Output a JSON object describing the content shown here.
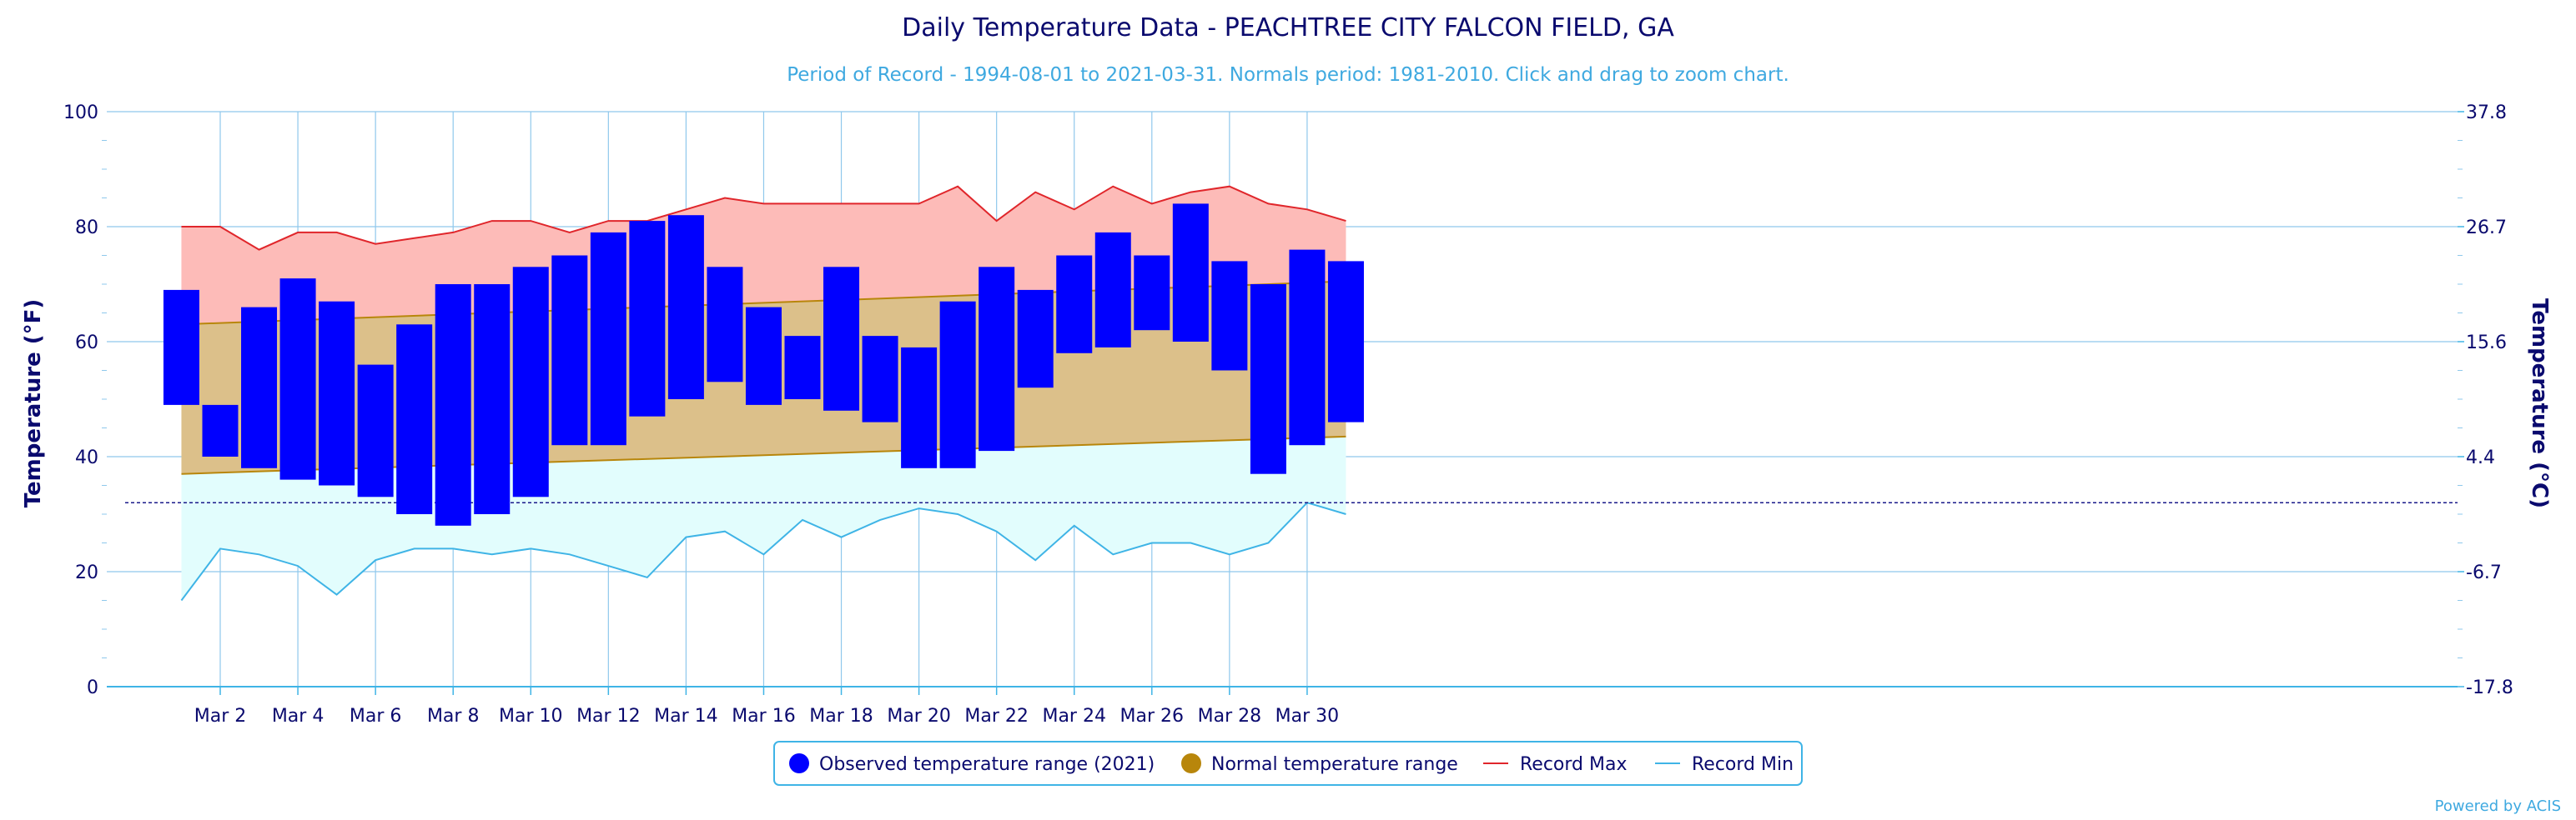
{
  "chart_data": {
    "type": "bar",
    "title": "Daily Temperature Data - PEACHTREE CITY FALCON FIELD, GA",
    "subtitle": "Period of Record - 1994-08-01 to 2021-03-31. Normals period: 1981-2010. Click and drag to zoom chart.",
    "ylabel": "Temperature (°F)",
    "ylabel_right": "Temperature (°C)",
    "ylim": [
      0,
      100
    ],
    "yticks": [
      0,
      20,
      40,
      60,
      80,
      100
    ],
    "yticks_right": [
      "-17.8",
      "-6.7",
      "4.4",
      "15.6",
      "26.7",
      "37.8"
    ],
    "x_labels": [
      "Mar 2",
      "Mar 4",
      "Mar 6",
      "Mar 8",
      "Mar 10",
      "Mar 12",
      "Mar 14",
      "Mar 16",
      "Mar 18",
      "Mar 20",
      "Mar 22",
      "Mar 24",
      "Mar 26",
      "Mar 28",
      "Mar 30"
    ],
    "days": [
      1,
      2,
      3,
      4,
      5,
      6,
      7,
      8,
      9,
      10,
      11,
      12,
      13,
      14,
      15,
      16,
      17,
      18,
      19,
      20,
      21,
      22,
      23,
      24,
      25,
      26,
      27,
      28,
      29,
      30,
      31
    ],
    "freezing_line": 32,
    "series": [
      {
        "name": "Observed temperature range (2021)",
        "color": "#0000ff",
        "low": [
          49,
          40,
          38,
          36,
          35,
          33,
          30,
          28,
          30,
          33,
          42,
          42,
          47,
          50,
          53,
          49,
          50,
          48,
          46,
          38,
          38,
          41,
          52,
          58,
          59,
          62,
          60,
          55,
          37,
          42,
          46
        ],
        "high": [
          69,
          49,
          66,
          71,
          67,
          56,
          63,
          70,
          70,
          73,
          75,
          79,
          81,
          82,
          73,
          66,
          61,
          73,
          61,
          59,
          67,
          73,
          69,
          75,
          79,
          75,
          84,
          74,
          70,
          76,
          74
        ]
      },
      {
        "name": "Normal temperature range",
        "color": "#b8860b",
        "low_start": 37,
        "low_end": 43.5,
        "high_start": 63,
        "high_end": 70.5
      },
      {
        "name": "Record Max",
        "color": "#e0262b",
        "values": [
          80,
          80,
          76,
          79,
          79,
          77,
          78,
          79,
          81,
          81,
          79,
          81,
          81,
          83,
          85,
          84,
          84,
          84,
          84,
          84,
          87,
          81,
          86,
          83,
          87,
          84,
          86,
          87,
          84,
          83,
          81
        ]
      },
      {
        "name": "Record Min",
        "color": "#3fb4e6",
        "values": [
          15,
          24,
          23,
          21,
          16,
          22,
          24,
          24,
          23,
          24,
          23,
          21,
          19,
          26,
          27,
          23,
          29,
          26,
          29,
          31,
          30,
          27,
          22,
          28,
          23,
          25,
          25,
          23,
          25,
          32,
          30
        ]
      }
    ]
  },
  "credit": "Powered by ACIS"
}
